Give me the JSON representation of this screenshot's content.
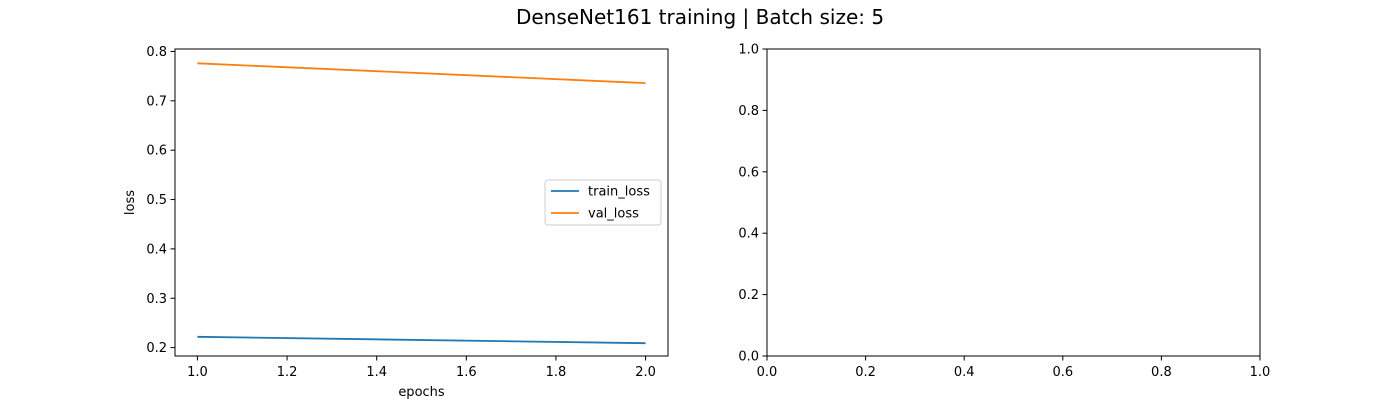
{
  "figure": {
    "title": "DenseNet161 training | Batch size: 5"
  },
  "chart_data": [
    {
      "type": "line",
      "title": "",
      "xlabel": "epochs",
      "ylabel": "loss",
      "xlim": [
        0.95,
        2.05
      ],
      "ylim": [
        0.183,
        0.805
      ],
      "x_ticks": [
        "1.0",
        "1.2",
        "1.4",
        "1.6",
        "1.8",
        "2.0"
      ],
      "y_ticks": [
        "0.2",
        "0.3",
        "0.4",
        "0.5",
        "0.6",
        "0.7",
        "0.8"
      ],
      "grid": false,
      "legend_placement": "center-right",
      "series": [
        {
          "name": "train_loss",
          "color": "#1f77b4",
          "x": [
            1.0,
            2.0
          ],
          "y": [
            0.222,
            0.209
          ]
        },
        {
          "name": "val_loss",
          "color": "#ff7f0e",
          "x": [
            1.0,
            2.0
          ],
          "y": [
            0.776,
            0.736
          ]
        }
      ]
    },
    {
      "type": "line",
      "title": "",
      "xlabel": "",
      "ylabel": "",
      "xlim": [
        0.0,
        1.0
      ],
      "ylim": [
        0.0,
        1.0
      ],
      "x_ticks": [
        "0.0",
        "0.2",
        "0.4",
        "0.6",
        "0.8",
        "1.0"
      ],
      "y_ticks": [
        "0.0",
        "0.2",
        "0.4",
        "0.6",
        "0.8",
        "1.0"
      ],
      "grid": false,
      "series": []
    }
  ]
}
